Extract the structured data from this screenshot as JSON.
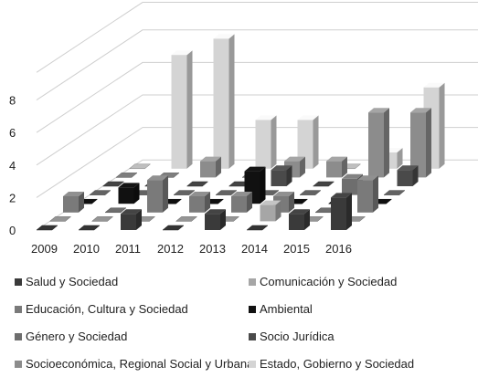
{
  "chart_data": {
    "type": "bar",
    "variant": "3d-depth-columns",
    "categories": [
      "2009",
      "2010",
      "2011",
      "2012",
      "2013",
      "2014",
      "2015",
      "2016"
    ],
    "y_ticks": [
      "0",
      "2",
      "4",
      "6",
      "8"
    ],
    "ylim": [
      0,
      8
    ],
    "grid": true,
    "legend_position": "bottom",
    "series": [
      {
        "name": "Salud y Sociedad",
        "color": "#3a3a3a",
        "values": [
          0,
          0,
          1,
          0,
          1,
          0,
          1,
          2
        ]
      },
      {
        "name": "Comunicación y Sociedad",
        "color": "#a6a6a6",
        "values": [
          0,
          0,
          0,
          0,
          0,
          1,
          0,
          0
        ]
      },
      {
        "name": "Educación, Cultura y Sociedad",
        "color": "#7a7a7a",
        "values": [
          1,
          0,
          2,
          1,
          1,
          1,
          0,
          2
        ]
      },
      {
        "name": "Ambiental",
        "color": "#111111",
        "values": [
          0,
          1,
          0,
          0,
          2,
          0,
          0,
          0
        ]
      },
      {
        "name": "Género y Sociedad",
        "color": "#6e6e6e",
        "values": [
          0,
          0,
          0,
          0,
          0,
          0,
          1,
          0
        ]
      },
      {
        "name": "Socio Jurídica",
        "color": "#4a4a4a",
        "values": [
          0,
          0,
          0,
          0,
          1,
          0,
          0,
          1
        ]
      },
      {
        "name": "Socioeconómica, Regional Social y Urbana",
        "color": "#8c8c8c",
        "values": [
          0,
          0,
          1,
          0,
          1,
          1,
          4,
          4
        ]
      },
      {
        "name": "Estado, Gobierno y Sociedad",
        "color": "#d4d4d4",
        "values": [
          0,
          7,
          8,
          3,
          3,
          0,
          1,
          5
        ]
      }
    ],
    "legend": [
      {
        "name": "Salud y Sociedad",
        "color": "#3a3a3a"
      },
      {
        "name": "Comunicación y Sociedad",
        "color": "#a6a6a6"
      },
      {
        "name": "Educación, Cultura y Sociedad",
        "color": "#7a7a7a"
      },
      {
        "name": "Ambiental",
        "color": "#111111"
      },
      {
        "name": "Género y Sociedad",
        "color": "#6e6e6e"
      },
      {
        "name": "Socio Jurídica",
        "color": "#4a4a4a"
      },
      {
        "name": "Socioeconómica, Regional Social y Urbana",
        "color": "#8c8c8c"
      },
      {
        "name": "Estado, Gobierno y Sociedad",
        "color": "#d4d4d4"
      }
    ]
  }
}
